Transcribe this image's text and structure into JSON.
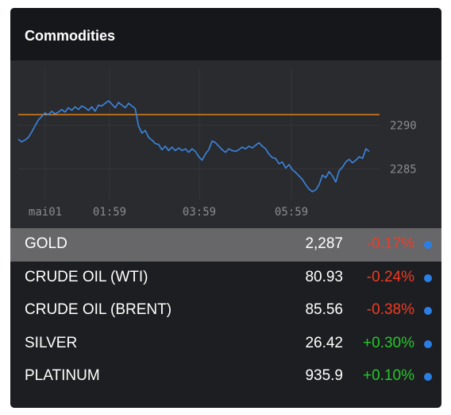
{
  "widget": {
    "title": "Commodities"
  },
  "chart_data": {
    "type": "line",
    "x_ticks": [
      "mai01",
      "01:59",
      "03:59",
      "05:59"
    ],
    "y_ticks": [
      2290,
      2285
    ],
    "ylim": [
      2281.5,
      2296.5
    ],
    "reference_line": {
      "value": 2291.2,
      "color": "#d9801d"
    },
    "series": [
      {
        "color": "#3a86e0",
        "values": [
          2288.4,
          2288.1,
          2288.3,
          2288.6,
          2289.2,
          2289.9,
          2290.6,
          2291.0,
          2291.4,
          2291.2,
          2291.6,
          2291.3,
          2291.5,
          2291.8,
          2291.5,
          2292.0,
          2291.7,
          2292.1,
          2291.8,
          2292.2,
          2292.0,
          2291.7,
          2292.1,
          2291.6,
          2292.3,
          2292.2,
          2292.5,
          2292.8,
          2292.4,
          2292.0,
          2292.6,
          2292.3,
          2292.0,
          2292.5,
          2292.2,
          2291.9,
          2289.9,
          2289.1,
          2289.4,
          2288.6,
          2288.3,
          2287.9,
          2287.8,
          2287.2,
          2287.6,
          2287.1,
          2287.5,
          2287.1,
          2287.4,
          2287.1,
          2287.3,
          2286.9,
          2287.3,
          2287.0,
          2286.4,
          2286.0,
          2286.7,
          2287.2,
          2288.2,
          2288.0,
          2287.6,
          2287.2,
          2286.9,
          2287.3,
          2287.1,
          2287.0,
          2287.2,
          2287.5,
          2287.3,
          2287.6,
          2287.4,
          2287.7,
          2288.0,
          2287.6,
          2287.3,
          2286.7,
          2286.3,
          2286.2,
          2285.6,
          2285.8,
          2285.1,
          2285.5,
          2284.9,
          2284.6,
          2284.2,
          2283.8,
          2283.2,
          2282.7,
          2282.4,
          2282.6,
          2283.2,
          2284.3,
          2284.0,
          2284.7,
          2284.2,
          2283.5,
          2284.8,
          2285.2,
          2285.8,
          2286.1,
          2285.7,
          2286.0,
          2286.4,
          2286.2,
          2287.3,
          2287.0
        ]
      }
    ]
  },
  "commodities": [
    {
      "name": "GOLD",
      "price": "2,287",
      "change": "-0.17%",
      "direction": "down",
      "selected": true
    },
    {
      "name": "CRUDE OIL (WTI)",
      "price": "80.93",
      "change": "-0.24%",
      "direction": "down",
      "selected": false
    },
    {
      "name": "CRUDE OIL (BRENT)",
      "price": "85.56",
      "change": "-0.38%",
      "direction": "down",
      "selected": false
    },
    {
      "name": "SILVER",
      "price": "26.42",
      "change": "+0.30%",
      "direction": "up",
      "selected": false
    },
    {
      "name": "PLATINUM",
      "price": "935.9",
      "change": "+0.10%",
      "direction": "up",
      "selected": false
    }
  ],
  "colors": {
    "negative": "#ef3b24",
    "positive": "#25c72c",
    "dot": "#2a7fe6",
    "accent_line": "#d9801d"
  }
}
